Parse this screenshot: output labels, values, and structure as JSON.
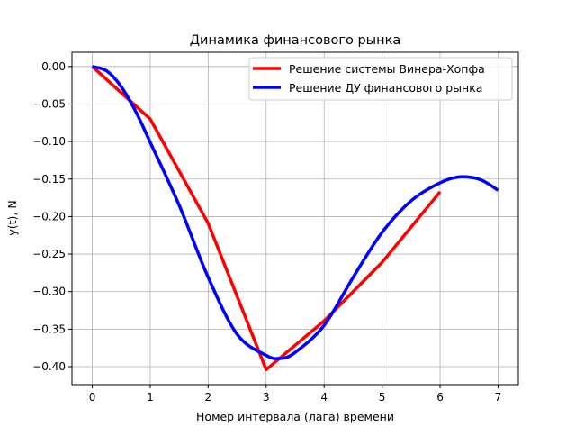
{
  "chart_data": {
    "type": "line",
    "title": "Динамика финансового рынка",
    "xlabel": "Номер интервала (лага) времени",
    "ylabel": "y(t), N",
    "xlim": [
      -0.35,
      7.35
    ],
    "ylim": [
      -0.424,
      0.019
    ],
    "xticks": [
      0,
      1,
      2,
      3,
      4,
      5,
      6,
      7
    ],
    "xtick_labels": [
      "0",
      "1",
      "2",
      "3",
      "4",
      "5",
      "6",
      "7"
    ],
    "yticks": [
      0.0,
      -0.05,
      -0.1,
      -0.15,
      -0.2,
      -0.25,
      -0.3,
      -0.35,
      -0.4
    ],
    "ytick_labels": [
      "0.00",
      "−0.05",
      "−0.10",
      "−0.15",
      "−0.20",
      "−0.25",
      "−0.30",
      "−0.35",
      "−0.40"
    ],
    "grid": true,
    "legend_position": "top-right",
    "series": [
      {
        "name": "Решение системы Винера-Хопфа",
        "color": "#ff0000",
        "x": [
          0,
          1,
          2,
          3,
          4,
          5,
          6
        ],
        "y": [
          0.0,
          -0.07,
          -0.209,
          -0.404,
          -0.339,
          -0.261,
          -0.167
        ]
      },
      {
        "name": "Решение ДУ финансового рынка",
        "color": "#0000ff",
        "x": [
          0,
          0.25,
          0.5,
          0.75,
          1,
          1.5,
          2,
          2.5,
          3,
          3.25,
          3.5,
          4,
          4.5,
          5,
          5.5,
          6,
          6.35,
          6.7,
          7
        ],
        "y": [
          0.0,
          -0.006,
          -0.027,
          -0.06,
          -0.101,
          -0.185,
          -0.281,
          -0.357,
          -0.385,
          -0.389,
          -0.381,
          -0.345,
          -0.281,
          -0.221,
          -0.179,
          -0.155,
          -0.147,
          -0.151,
          -0.165
        ]
      }
    ]
  }
}
